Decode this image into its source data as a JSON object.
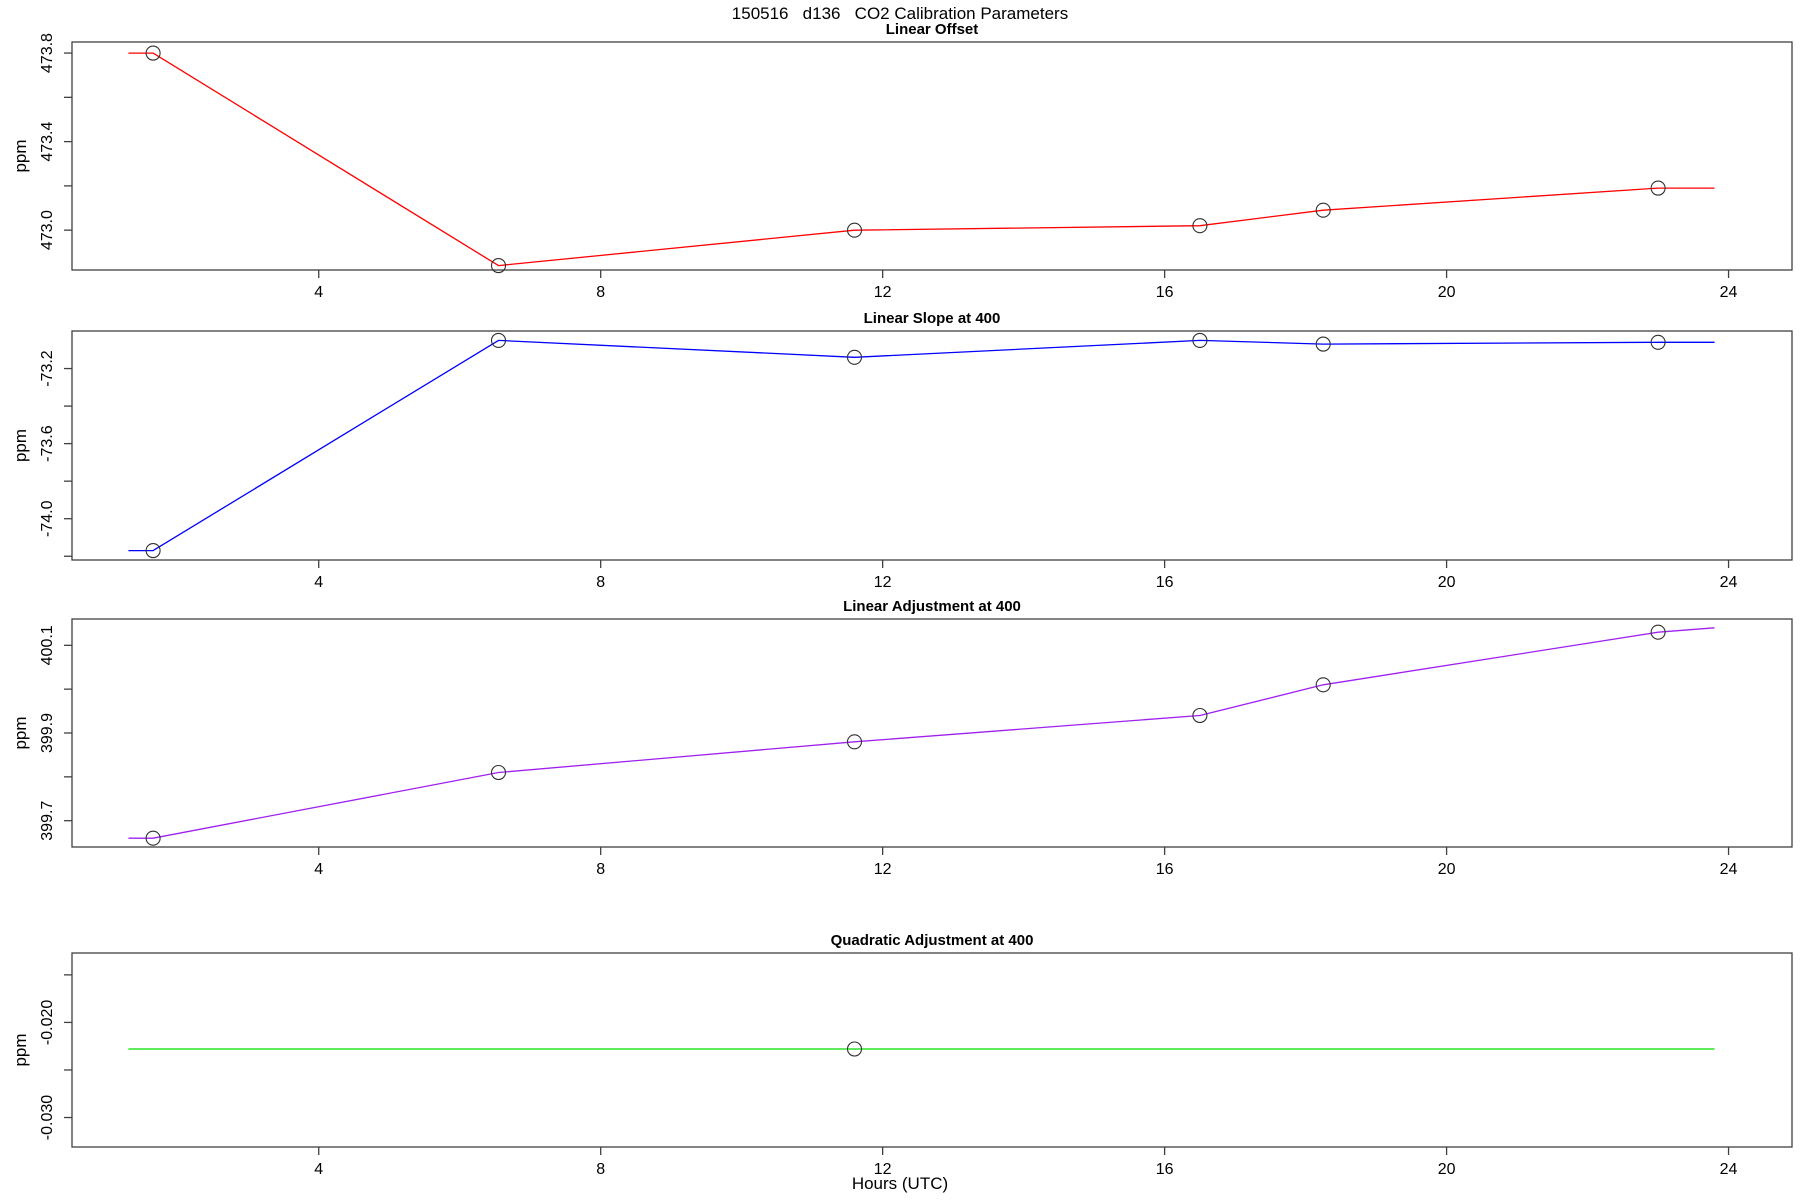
{
  "title": "150516   d136   CO2 Calibration Parameters",
  "xlabel": "Hours (UTC)",
  "chart_data": {
    "type": "line",
    "title": "150516   d136   CO2 Calibration Parameters",
    "xlabel": "Hours (UTC)",
    "xlim": [
      0.5,
      24.9
    ],
    "x_ticks": [
      4,
      8,
      12,
      16,
      20,
      24
    ],
    "x_tick_labels": [
      "4",
      "8",
      "12",
      "16",
      "20",
      "24"
    ],
    "marker_hours": [
      1.65,
      6.55,
      11.6,
      16.5,
      18.25,
      23.0
    ],
    "grid": false,
    "legend": "none",
    "panels": [
      {
        "title": "Linear Offset",
        "ylabel": "ppm",
        "color": "#FF0000",
        "ylim": [
          472.82,
          473.85
        ],
        "ytick_major": [
          {
            "v": 473.0,
            "t": "473.0"
          },
          {
            "v": 473.4,
            "t": "473.4"
          },
          {
            "v": 473.8,
            "t": "473.8"
          }
        ],
        "ytick_minor": [
          473.2,
          473.6
        ],
        "line": [
          [
            1.3,
            473.8
          ],
          [
            1.65,
            473.8
          ],
          [
            6.55,
            472.84
          ],
          [
            11.6,
            473.0
          ],
          [
            16.5,
            473.02
          ],
          [
            18.25,
            473.09
          ],
          [
            23.0,
            473.19
          ],
          [
            23.8,
            473.19
          ]
        ],
        "markers": [
          [
            1.65,
            473.8
          ],
          [
            6.55,
            472.84
          ],
          [
            11.6,
            473.0
          ],
          [
            16.5,
            473.02
          ],
          [
            18.25,
            473.09
          ],
          [
            23.0,
            473.19
          ]
        ]
      },
      {
        "title": "Linear Slope at 400",
        "ylabel": "ppm",
        "color": "#0000FF",
        "ylim": [
          -74.22,
          -73.0
        ],
        "ytick_major": [
          {
            "v": -73.2,
            "t": "-73.2"
          },
          {
            "v": -73.6,
            "t": "-73.6"
          },
          {
            "v": -74.0,
            "t": "-74.0"
          }
        ],
        "ytick_minor": [
          -73.4,
          -73.8,
          -74.2
        ],
        "line": [
          [
            1.3,
            -74.17
          ],
          [
            1.65,
            -74.17
          ],
          [
            6.55,
            -73.05
          ],
          [
            11.6,
            -73.14
          ],
          [
            16.5,
            -73.05
          ],
          [
            18.25,
            -73.07
          ],
          [
            23.0,
            -73.06
          ],
          [
            23.8,
            -73.06
          ]
        ],
        "markers": [
          [
            1.65,
            -74.17
          ],
          [
            6.55,
            -73.05
          ],
          [
            11.6,
            -73.14
          ],
          [
            16.5,
            -73.05
          ],
          [
            18.25,
            -73.07
          ],
          [
            23.0,
            -73.06
          ]
        ]
      },
      {
        "title": "Linear Adjustment at 400",
        "ylabel": "ppm",
        "color": "#A020F0",
        "ylim": [
          399.64,
          400.16
        ],
        "ytick_major": [
          {
            "v": 399.7,
            "t": "399.7"
          },
          {
            "v": 399.9,
            "t": "399.9"
          },
          {
            "v": 400.1,
            "t": "400.1"
          }
        ],
        "ytick_minor": [
          399.8,
          400.0
        ],
        "line": [
          [
            1.3,
            399.66
          ],
          [
            1.65,
            399.66
          ],
          [
            6.55,
            399.81
          ],
          [
            11.6,
            399.88
          ],
          [
            16.5,
            399.94
          ],
          [
            18.25,
            400.01
          ],
          [
            23.0,
            400.13
          ],
          [
            23.8,
            400.14
          ]
        ],
        "markers": [
          [
            1.65,
            399.66
          ],
          [
            6.55,
            399.81
          ],
          [
            11.6,
            399.88
          ],
          [
            16.5,
            399.94
          ],
          [
            18.25,
            400.01
          ],
          [
            23.0,
            400.13
          ]
        ]
      },
      {
        "title": "Quadratic Adjustment at 400",
        "ylabel": "ppm",
        "color": "#00DD00",
        "ylim": [
          -0.0331,
          -0.0127
        ],
        "ytick_major": [
          {
            "v": -0.02,
            "t": "-0.020"
          },
          {
            "v": -0.03,
            "t": "-0.030"
          }
        ],
        "ytick_minor": [
          -0.015,
          -0.025
        ],
        "line": [
          [
            1.3,
            -0.0228
          ],
          [
            23.8,
            -0.0228
          ]
        ],
        "markers": [
          [
            11.6,
            -0.0228
          ]
        ]
      }
    ]
  }
}
